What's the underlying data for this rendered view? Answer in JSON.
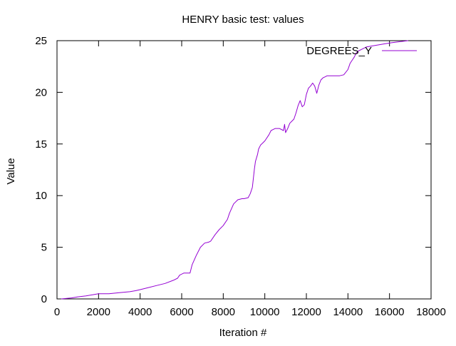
{
  "chart_data": {
    "type": "line",
    "title": "HENRY basic test: values",
    "xlabel": "Iteration #",
    "ylabel": "Value",
    "xlim": [
      0,
      18000
    ],
    "ylim": [
      0,
      25
    ],
    "xticks": [
      0,
      2000,
      4000,
      6000,
      8000,
      10000,
      12000,
      14000,
      16000,
      18000
    ],
    "yticks": [
      0,
      5,
      10,
      15,
      20,
      25
    ],
    "grid": false,
    "legend_position": "top-right",
    "colors": {
      "series": "#9400d3",
      "axes": "#000000"
    },
    "series": [
      {
        "name": "DEGREES_Y",
        "x": [
          200,
          700,
          1000,
          1400,
          1700,
          2000,
          2500,
          3000,
          3500,
          3800,
          4000,
          4400,
          4800,
          5200,
          5600,
          5800,
          5900,
          6100,
          6400,
          6500,
          6700,
          6900,
          7100,
          7300,
          7400,
          7600,
          7800,
          8000,
          8200,
          8300,
          8500,
          8700,
          8900,
          9000,
          9200,
          9300,
          9400,
          9500,
          9550,
          9650,
          9700,
          9800,
          9900,
          10000,
          10200,
          10300,
          10500,
          10700,
          10900,
          10950,
          11000,
          11100,
          11200,
          11300,
          11400,
          11500,
          11600,
          11700,
          11800,
          11900,
          12000,
          12100,
          12200,
          12300,
          12400,
          12500,
          12600,
          12700,
          12800,
          12900,
          13000,
          13200,
          13400,
          13600,
          13800,
          14000,
          14100,
          14200,
          14300,
          14400,
          14500,
          14700,
          14900,
          15200,
          15500,
          15800,
          16100,
          16500,
          16900
        ],
        "values": [
          0.0,
          0.1,
          0.2,
          0.3,
          0.4,
          0.5,
          0.5,
          0.6,
          0.7,
          0.8,
          0.9,
          1.1,
          1.3,
          1.5,
          1.8,
          2.0,
          2.3,
          2.5,
          2.5,
          3.3,
          4.2,
          5.0,
          5.4,
          5.5,
          5.6,
          6.2,
          6.7,
          7.1,
          7.7,
          8.3,
          9.2,
          9.6,
          9.7,
          9.7,
          9.8,
          10.2,
          10.8,
          12.6,
          13.3,
          14.0,
          14.5,
          14.9,
          15.1,
          15.3,
          15.9,
          16.3,
          16.5,
          16.5,
          16.3,
          16.9,
          16.1,
          16.5,
          17.0,
          17.2,
          17.4,
          18.0,
          18.7,
          19.2,
          18.6,
          18.8,
          19.8,
          20.4,
          20.6,
          20.9,
          20.6,
          19.9,
          20.7,
          21.2,
          21.4,
          21.5,
          21.6,
          21.6,
          21.6,
          21.6,
          21.7,
          22.2,
          22.8,
          23.1,
          23.4,
          23.8,
          24.0,
          24.2,
          24.4,
          24.5,
          24.6,
          24.7,
          24.8,
          24.9,
          25.0
        ]
      }
    ]
  }
}
